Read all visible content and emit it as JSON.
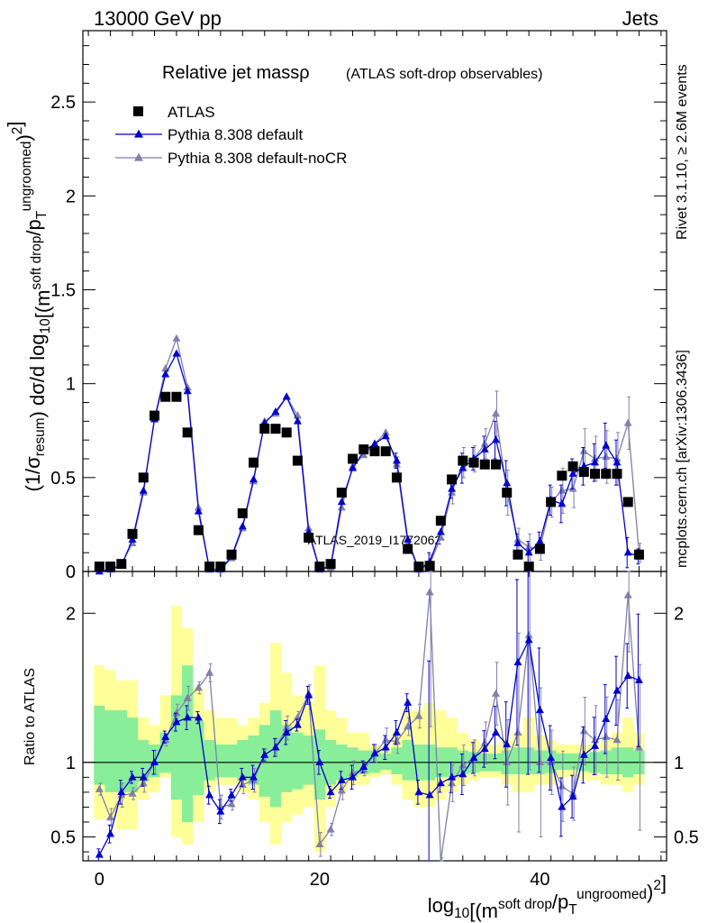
{
  "header": {
    "left": "13000 GeV pp",
    "right": "Jets"
  },
  "side_labels": {
    "rivet": "Rivet 3.1.10, ≥ 2.6M events",
    "mcplots": "mcplots.cern.ch [arXiv:1306.3436]"
  },
  "watermark": "ATLAS_2019_I1772062",
  "colors": {
    "atlas": "#000000",
    "pythia_default": "#0000cc",
    "pythia_nocr": "#8080aa",
    "band_yellow": "#ffff99",
    "band_green": "#88ee99"
  },
  "chart_data": [
    {
      "type": "scatter",
      "title": "Relative jet massρ",
      "subtitle": "(ATLAS soft-drop observables)",
      "ylabel": "(1/σresum) dσ/d log10[(m soft drop/pT ungroomed)2]",
      "xlim": [
        -1.5,
        51.5
      ],
      "ylim": [
        0,
        2.88
      ],
      "yticks": [
        "0",
        "0.5",
        "1",
        "1.5",
        "2",
        "2.5"
      ],
      "legend": {
        "placement": "top-left",
        "entries": [
          "ATLAS",
          "Pythia 8.308 default",
          "Pythia 8.308 default-noCR"
        ]
      },
      "x": [
        0,
        1,
        2,
        3,
        4,
        5,
        6,
        7,
        8,
        9,
        10,
        11,
        12,
        13,
        14,
        15,
        16,
        17,
        18,
        19,
        20,
        21,
        22,
        23,
        24,
        25,
        26,
        27,
        28,
        29,
        30,
        31,
        32,
        33,
        34,
        35,
        36,
        37,
        38,
        39,
        40,
        41,
        42,
        43,
        44,
        45,
        46,
        47,
        48,
        49
      ],
      "series": [
        {
          "name": "ATLAS",
          "values": [
            0,
            0,
            0.04,
            0.2,
            0.5,
            0.83,
            0.93,
            0.93,
            0.74,
            0.22,
            0,
            0,
            0.09,
            0.31,
            0.58,
            0.76,
            0.76,
            0.74,
            0.59,
            0.18,
            0,
            0.04,
            0.42,
            0.6,
            0.65,
            0.64,
            0.64,
            0.5,
            0.12,
            0,
            0.03,
            0.27,
            0.49,
            0.59,
            0.58,
            0.57,
            0.57,
            0.42,
            0.09,
            0.02,
            0.12,
            0.37,
            0.51,
            0.56,
            0.53,
            0.52,
            0.52,
            0.52,
            0.37,
            0.09
          ]
        },
        {
          "name": "Pythia 8.308 default",
          "values": [
            0,
            0.01,
            0.03,
            0.17,
            0.43,
            0.81,
            1.05,
            1.16,
            0.96,
            0.32,
            0.01,
            0.01,
            0.08,
            0.24,
            0.49,
            0.79,
            0.85,
            0.93,
            0.8,
            0.21,
            0.01,
            0.03,
            0.37,
            0.55,
            0.64,
            0.68,
            0.72,
            0.59,
            0.17,
            0.01,
            0.05,
            0.21,
            0.44,
            0.55,
            0.6,
            0.65,
            0.7,
            0.47,
            0.15,
            0.1,
            0.16,
            0.38,
            0.36,
            0.52,
            0.56,
            0.58,
            0.67,
            0.58,
            0.1,
            0.08
          ]
        },
        {
          "name": "Pythia 8.308 default-noCR",
          "values": [
            0,
            0.01,
            0.04,
            0.15,
            0.42,
            0.81,
            1.08,
            1.24,
            0.98,
            0.34,
            0.01,
            0.01,
            0.07,
            0.23,
            0.48,
            0.8,
            0.84,
            0.93,
            0.83,
            0.23,
            0.01,
            0.02,
            0.34,
            0.56,
            0.62,
            0.68,
            0.74,
            0.57,
            0.15,
            0.01,
            0.04,
            0.18,
            0.42,
            0.58,
            0.6,
            0.68,
            0.84,
            0.42,
            0.17,
            0.13,
            0.12,
            0.37,
            0.43,
            0.44,
            0.64,
            0.6,
            0.61,
            0.6,
            0.79,
            0.1
          ]
        }
      ],
      "mc_errors": {
        "Pythia 8.308 default": [
          0,
          0,
          0,
          0,
          0,
          0,
          0,
          0,
          0,
          0,
          0,
          0,
          0,
          0,
          0,
          0,
          0,
          0,
          0,
          0,
          0,
          0,
          0,
          0,
          0,
          0,
          0,
          0.04,
          0,
          0,
          0.05,
          0,
          0.05,
          0.08,
          0.06,
          0.07,
          0.1,
          0.12,
          0.05,
          0.06,
          0.05,
          0.08,
          0.1,
          0.08,
          0.1,
          0.1,
          0.12,
          0.12,
          0.08,
          0.04
        ],
        "Pythia 8.308 default-noCR": [
          0,
          0,
          0,
          0,
          0,
          0,
          0,
          0,
          0,
          0,
          0,
          0,
          0,
          0,
          0,
          0,
          0,
          0,
          0,
          0,
          0,
          0,
          0,
          0,
          0,
          0,
          0,
          0.04,
          0,
          0,
          0.05,
          0,
          0.06,
          0.08,
          0.07,
          0.08,
          0.12,
          0.12,
          0.06,
          0.07,
          0.06,
          0.08,
          0.12,
          0.1,
          0.12,
          0.12,
          0.14,
          0.14,
          0.14,
          0.05
        ]
      }
    },
    {
      "type": "scatter",
      "xlabel": "log10[(m soft drop/pT ungroomed)2]",
      "ylabel": "Ratio to ATLAS",
      "xlim": [
        -1.5,
        51.5
      ],
      "ylim": [
        0.34,
        2.28
      ],
      "xticks": [
        "0",
        "20",
        "40"
      ],
      "yticks": [
        "0.5",
        "1",
        "2"
      ],
      "x": [
        0,
        1,
        2,
        3,
        4,
        5,
        6,
        7,
        8,
        9,
        10,
        11,
        12,
        13,
        14,
        15,
        16,
        17,
        18,
        19,
        20,
        21,
        22,
        23,
        24,
        25,
        26,
        27,
        28,
        29,
        30,
        31,
        32,
        33,
        34,
        35,
        36,
        37,
        38,
        39,
        40,
        41,
        42,
        43,
        44,
        45,
        46,
        47,
        48,
        49
      ],
      "band_yellow": [
        0.62,
        0.62,
        0.55,
        0.55,
        0.75,
        0.8,
        0.9,
        0.5,
        0.45,
        0.6,
        0.8,
        0.85,
        0.85,
        0.8,
        0.75,
        0.6,
        0.45,
        0.6,
        0.65,
        0.7,
        0.4,
        0.7,
        0.8,
        0.85,
        0.85,
        0.9,
        0.92,
        0.85,
        0.75,
        0.7,
        0.7,
        0.75,
        0.8,
        0.85,
        0.88,
        0.9,
        0.9,
        0.85,
        0.8,
        0.8,
        0.85,
        0.85,
        0.9,
        0.9,
        0.88,
        0.88,
        0.85,
        0.85,
        0.8,
        0.85
      ],
      "band_yellow_hi": [
        1.65,
        1.62,
        1.55,
        1.55,
        1.3,
        1.25,
        1.45,
        2.05,
        1.9,
        1.5,
        1.35,
        1.3,
        1.3,
        1.25,
        1.3,
        1.4,
        1.8,
        1.6,
        1.45,
        1.4,
        1.65,
        1.35,
        1.3,
        1.2,
        1.2,
        1.12,
        1.1,
        1.2,
        1.35,
        1.35,
        1.4,
        1.35,
        1.3,
        1.2,
        1.15,
        1.12,
        1.12,
        1.15,
        1.2,
        1.3,
        1.18,
        1.15,
        1.12,
        1.12,
        1.12,
        1.12,
        1.15,
        1.2,
        1.3,
        1.2
      ],
      "band_green": [
        0.85,
        0.8,
        0.8,
        0.8,
        0.87,
        0.9,
        0.93,
        0.75,
        0.6,
        0.78,
        0.88,
        0.9,
        0.9,
        0.88,
        0.85,
        0.77,
        0.7,
        0.8,
        0.82,
        0.85,
        0.75,
        0.85,
        0.88,
        0.9,
        0.92,
        0.93,
        0.95,
        0.92,
        0.88,
        0.88,
        0.88,
        0.9,
        0.9,
        0.92,
        0.93,
        0.94,
        0.94,
        0.92,
        0.92,
        0.92,
        0.92,
        0.93,
        0.95,
        0.95,
        0.94,
        0.93,
        0.92,
        0.92,
        0.9,
        0.92
      ],
      "band_green_hi": [
        1.38,
        1.35,
        1.35,
        1.3,
        1.15,
        1.12,
        1.2,
        1.45,
        1.65,
        1.28,
        1.15,
        1.12,
        1.12,
        1.15,
        1.18,
        1.25,
        1.35,
        1.25,
        1.2,
        1.18,
        1.22,
        1.15,
        1.12,
        1.1,
        1.08,
        1.08,
        1.06,
        1.1,
        1.15,
        1.12,
        1.12,
        1.1,
        1.1,
        1.08,
        1.07,
        1.06,
        1.06,
        1.08,
        1.1,
        1.1,
        1.08,
        1.08,
        1.06,
        1.06,
        1.06,
        1.07,
        1.08,
        1.1,
        1.1,
        1.08
      ],
      "series": [
        {
          "name": "Pythia 8.308 default",
          "values": [
            0.38,
            0.52,
            0.8,
            0.9,
            0.9,
            1.0,
            1.17,
            1.27,
            1.3,
            1.3,
            0.78,
            0.67,
            0.78,
            0.9,
            0.9,
            1.05,
            1.1,
            1.2,
            1.25,
            1.45,
            1.0,
            0.8,
            0.88,
            0.9,
            0.97,
            1.06,
            1.1,
            1.2,
            1.4,
            0.8,
            0.78,
            0.86,
            0.9,
            0.92,
            1.03,
            1.09,
            1.2,
            1.12,
            1.67,
            1.82,
            1.35,
            1.03,
            0.7,
            0.77,
            1.05,
            1.11,
            1.29,
            1.48,
            1.58,
            1.55
          ]
        },
        {
          "name": "Pythia 8.308 default-noCR",
          "values": [
            0.82,
            0.63,
            0.78,
            0.79,
            0.86,
            1.0,
            1.15,
            1.33,
            1.43,
            1.5,
            1.6,
            0.7,
            0.72,
            0.85,
            0.88,
            1.05,
            1.1,
            1.23,
            1.3,
            1.46,
            0.45,
            0.55,
            0.81,
            0.93,
            0.95,
            1.06,
            1.15,
            1.14,
            1.24,
            1.31,
            2.14,
            0.3,
            0.86,
            0.98,
            1.03,
            1.13,
            1.46,
            1.0,
            1.2,
            1.85,
            1.0,
            1.0,
            0.84,
            0.79,
            1.21,
            1.15,
            1.17,
            1.15,
            2.12,
            1.1
          ]
        }
      ]
    }
  ]
}
